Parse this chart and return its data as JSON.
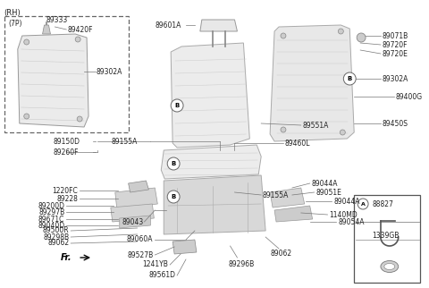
{
  "bg_color": "#ffffff",
  "fig_width": 4.8,
  "fig_height": 3.22,
  "dpi": 100,
  "line_color": "#555555",
  "label_color": "#222222",
  "part_fill": "#f0f0f0",
  "part_edge": "#888888",
  "labels": {
    "corner": "(RH)",
    "inset_box": "(7P)",
    "fr": "Fr."
  }
}
